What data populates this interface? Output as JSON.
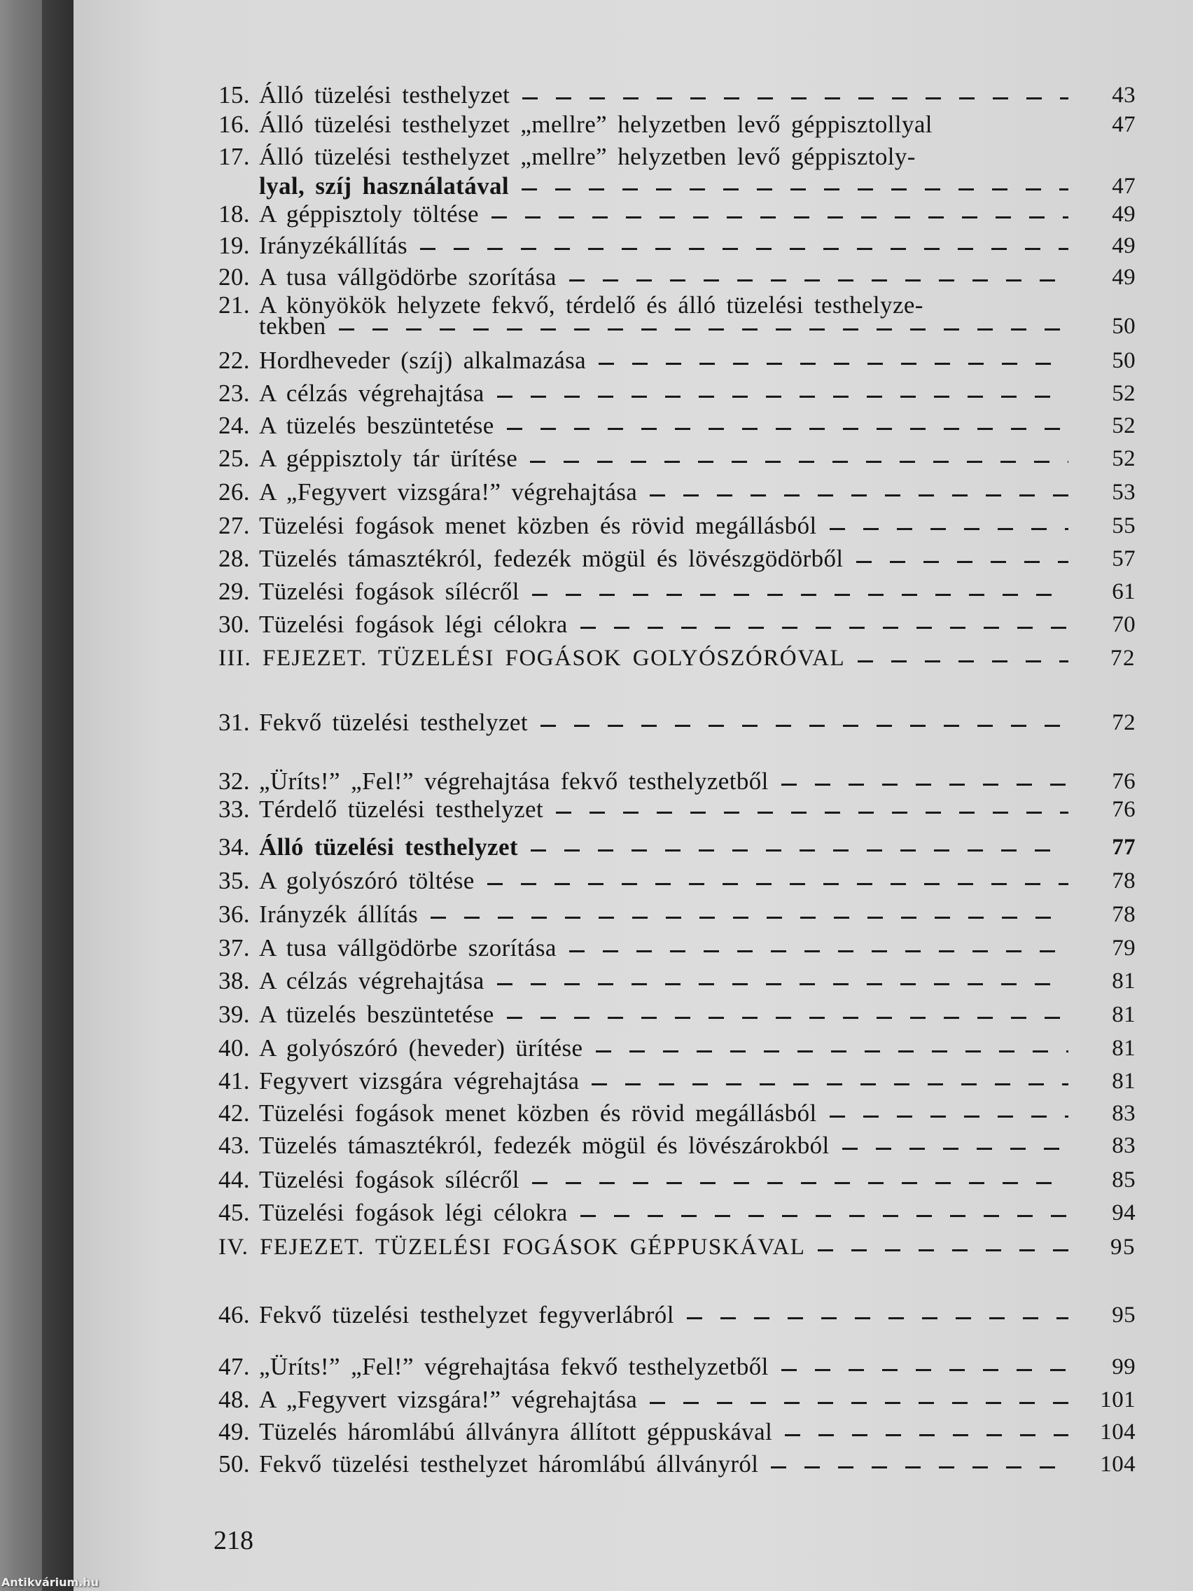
{
  "entries": [
    {
      "num": "15.",
      "lines": [
        "Álló tüzelési testhelyzet"
      ],
      "page": "43"
    },
    {
      "num": "16.",
      "lines": [
        "Álló tüzelési testhelyzet „mellre” helyzetben levő géppisztollyal"
      ],
      "page": "47",
      "noleader": true
    },
    {
      "num": "17.",
      "lines": [
        "Álló tüzelési testhelyzet „mellre” helyzetben levő géppisztoly-",
        "lyal, szíj használatával"
      ],
      "page": "47",
      "boldLast": true
    },
    {
      "num": "18.",
      "lines": [
        "A géppisztoly töltése"
      ],
      "page": "49"
    },
    {
      "num": "19.",
      "lines": [
        "Irányzékállítás"
      ],
      "page": "49"
    },
    {
      "num": "20.",
      "lines": [
        "A tusa vállgödörbe szorítása"
      ],
      "page": "49"
    },
    {
      "num": "21.",
      "lines": [
        "A könyökök helyzete fekvő, térdelő és álló tüzelési testhelyze-",
        "tekben"
      ],
      "page": "50"
    },
    {
      "num": "22.",
      "lines": [
        "Hordheveder (szíj) alkalmazása"
      ],
      "page": "50"
    },
    {
      "num": "23.",
      "lines": [
        "A célzás végrehajtása"
      ],
      "page": "52"
    },
    {
      "num": "24.",
      "lines": [
        "A tüzelés beszüntetése"
      ],
      "page": "52"
    },
    {
      "num": "25.",
      "lines": [
        "A géppisztoly tár ürítése"
      ],
      "page": "52"
    },
    {
      "num": "26.",
      "lines": [
        "A „Fegyvert vizsgára!” végrehajtása"
      ],
      "page": "53"
    },
    {
      "num": "27.",
      "lines": [
        "Tüzelési fogások menet közben és rövid megállásból"
      ],
      "page": "55"
    },
    {
      "num": "28.",
      "lines": [
        "Tüzelés támasztékról, fedezék mögül és lövészgödörből"
      ],
      "page": "57"
    },
    {
      "num": "29.",
      "lines": [
        "Tüzelési fogások sílécről"
      ],
      "page": "61"
    },
    {
      "num": "30.",
      "lines": [
        "Tüzelési fogások légi célokra"
      ],
      "page": "70"
    },
    {
      "num": "",
      "lines": [
        "III. FEJEZET. TÜZELÉSI FOGÁSOK GOLYÓSZÓRÓVAL"
      ],
      "page": "72",
      "chapter": true
    },
    {
      "num": "31.",
      "lines": [
        "Fekvő tüzelési testhelyzet"
      ],
      "page": "72"
    },
    {
      "num": "32.",
      "lines": [
        "„Üríts!” „Fel!” végrehajtása fekvő testhelyzetből"
      ],
      "page": "76"
    },
    {
      "num": "33.",
      "lines": [
        "Térdelő tüzelési testhelyzet"
      ],
      "page": "76"
    },
    {
      "num": "34.",
      "lines": [
        "Álló tüzelési testhelyzet"
      ],
      "page": "77",
      "bold": true
    },
    {
      "num": "35.",
      "lines": [
        "A golyószóró töltése"
      ],
      "page": "78"
    },
    {
      "num": "36.",
      "lines": [
        "Irányzék állítás"
      ],
      "page": "78"
    },
    {
      "num": "37.",
      "lines": [
        "A tusa vállgödörbe szorítása"
      ],
      "page": "79"
    },
    {
      "num": "38.",
      "lines": [
        "A célzás végrehajtása"
      ],
      "page": "81"
    },
    {
      "num": "39.",
      "lines": [
        "A tüzelés beszüntetése"
      ],
      "page": "81"
    },
    {
      "num": "40.",
      "lines": [
        "A golyószóró (heveder) ürítése"
      ],
      "page": "81"
    },
    {
      "num": "41.",
      "lines": [
        "Fegyvert vizsgára végrehajtása"
      ],
      "page": "81"
    },
    {
      "num": "42.",
      "lines": [
        "Tüzelési fogások menet közben és rövid megállásból"
      ],
      "page": "83"
    },
    {
      "num": "43.",
      "lines": [
        "Tüzelés támasztékról, fedezék mögül és lövészárokból"
      ],
      "page": "83"
    },
    {
      "num": "44.",
      "lines": [
        "Tüzelési fogások sílécről"
      ],
      "page": "85"
    },
    {
      "num": "45.",
      "lines": [
        "Tüzelési fogások légi célokra"
      ],
      "page": "94"
    },
    {
      "num": "",
      "lines": [
        "IV. FEJEZET. TÜZELÉSI FOGÁSOK GÉPPUSKÁVAL"
      ],
      "page": "95",
      "chapter": true
    },
    {
      "num": "46.",
      "lines": [
        "Fekvő tüzelési testhelyzet fegyverlábról"
      ],
      "page": "95"
    },
    {
      "num": "47.",
      "lines": [
        "„Üríts!” „Fel!” végrehajtása fekvő testhelyzetből"
      ],
      "page": "99"
    },
    {
      "num": "48.",
      "lines": [
        "A „Fegyvert vizsgára!” végrehajtása"
      ],
      "page": "101"
    },
    {
      "num": "49.",
      "lines": [
        "Tüzelés háromlábú állványra állított géppuskával"
      ],
      "page": "104"
    },
    {
      "num": "50.",
      "lines": [
        "Fekvő tüzelési testhelyzet háromlábú állványról"
      ],
      "page": "104"
    }
  ],
  "folio": "218",
  "watermark": "Antikvárium.hu"
}
